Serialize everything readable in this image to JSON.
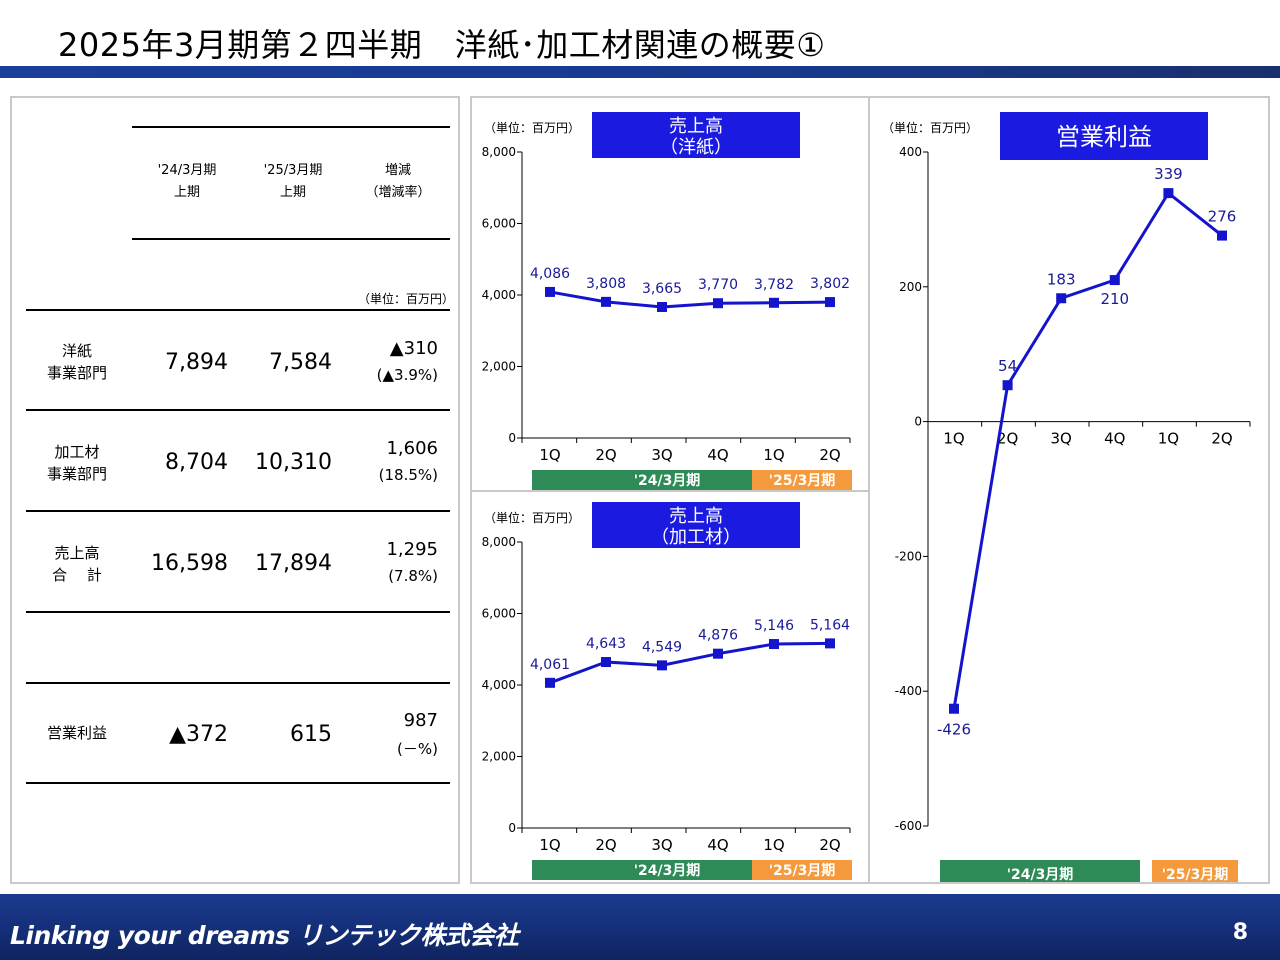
{
  "title": "2025年3月期第２四半期　洋紙･加工材関連の概要①",
  "table": {
    "headers": [
      {
        "l1": "'24/3月期",
        "l2": "上期"
      },
      {
        "l1": "'25/3月期",
        "l2": "上期"
      },
      {
        "l1": "増減",
        "l2": "（増減率）"
      }
    ],
    "unit": "（単位：百万円）",
    "rows": [
      {
        "label1": "洋紙",
        "label2": "事業部門",
        "v1": "7,894",
        "v2": "7,584",
        "chg": "▲310",
        "rate": "(▲3.9%)"
      },
      {
        "label1": "加工材",
        "label2": "事業部門",
        "v1": "8,704",
        "v2": "10,310",
        "chg": "1,606",
        "rate": "(18.5%)"
      },
      {
        "label1": "売上高",
        "label2": "合　 計",
        "v1": "16,598",
        "v2": "17,894",
        "chg": "1,295",
        "rate": "(7.8%)"
      },
      {
        "label1": "営業利益",
        "label2": "",
        "v1": "▲372",
        "v2": "615",
        "chg": "987",
        "rate": "(－%)"
      }
    ]
  },
  "colors": {
    "series": "#1414cc",
    "period1": "#2e8b57",
    "period2": "#f59a3c",
    "title_box": "#1a1ae0"
  },
  "chart_data": [
    {
      "type": "line",
      "title": "売上高（洋紙）",
      "title_l1": "売上高",
      "title_l2": "（洋紙）",
      "unit": "（単位：百万円）",
      "categories": [
        "1Q",
        "2Q",
        "3Q",
        "4Q",
        "1Q",
        "2Q"
      ],
      "values": [
        4086,
        3808,
        3665,
        3770,
        3782,
        3802
      ],
      "value_labels": [
        "4,086",
        "3,808",
        "3,665",
        "3,770",
        "3,782",
        "3,802"
      ],
      "ylim": [
        0,
        8000
      ],
      "yticks": [
        0,
        2000,
        4000,
        6000,
        8000
      ],
      "ytick_labels": [
        "0",
        "2,000",
        "4,000",
        "6,000",
        "8,000"
      ],
      "periods": [
        "'24/3月期",
        "'25/3月期"
      ],
      "grid": false
    },
    {
      "type": "line",
      "title": "売上高（加工材）",
      "title_l1": "売上高",
      "title_l2": "（加工材）",
      "unit": "（単位：百万円）",
      "categories": [
        "1Q",
        "2Q",
        "3Q",
        "4Q",
        "1Q",
        "2Q"
      ],
      "values": [
        4061,
        4643,
        4549,
        4876,
        5146,
        5164
      ],
      "value_labels": [
        "4,061",
        "4,643",
        "4,549",
        "4,876",
        "5,146",
        "5,164"
      ],
      "ylim": [
        0,
        8000
      ],
      "yticks": [
        0,
        2000,
        4000,
        6000,
        8000
      ],
      "ytick_labels": [
        "0",
        "2,000",
        "4,000",
        "6,000",
        "8,000"
      ],
      "periods": [
        "'24/3月期",
        "'25/3月期"
      ],
      "grid": false
    },
    {
      "type": "line",
      "title": "営業利益",
      "title_l1": "営業利益",
      "title_l2": "",
      "unit": "（単位：百万円）",
      "categories": [
        "1Q",
        "2Q",
        "3Q",
        "4Q",
        "1Q",
        "2Q"
      ],
      "values": [
        -426,
        54,
        183,
        210,
        339,
        276
      ],
      "value_labels": [
        "-426",
        "54",
        "183",
        "210",
        "339",
        "276"
      ],
      "ylim": [
        -600,
        400
      ],
      "yticks": [
        -600,
        -400,
        -200,
        0,
        200,
        400
      ],
      "ytick_labels": [
        "-600",
        "-400",
        "-200",
        "0",
        "200",
        "400"
      ],
      "periods": [
        "'24/3月期",
        "'25/3月期"
      ],
      "grid": false
    }
  ],
  "footer": {
    "tagline": "Linking your dreams  リンテック株式会社",
    "page": "8"
  }
}
